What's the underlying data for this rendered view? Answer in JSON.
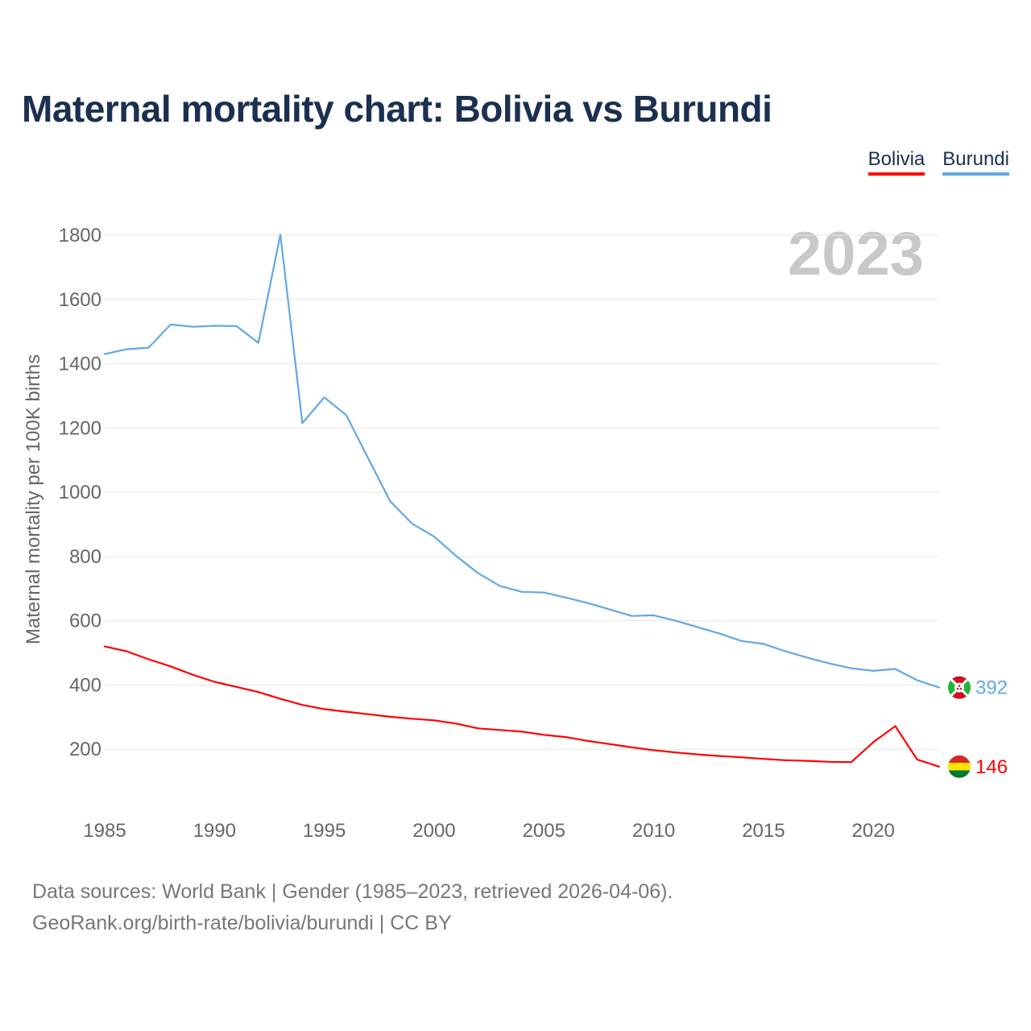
{
  "title": "Maternal mortality chart: Bolivia vs Burundi",
  "year_label": "2023",
  "legend": [
    {
      "label": "Bolivia",
      "color": "#ff0000"
    },
    {
      "label": "Burundi",
      "color": "#62a8e5"
    }
  ],
  "source": {
    "line1": "Data sources: World Bank | Gender (1985–2023, retrieved 2026-04-06).",
    "line2": "GeoRank.org/birth-rate/bolivia/burundi | CC BY"
  },
  "chart_data": {
    "type": "line",
    "title": "Maternal mortality chart: Bolivia vs Burundi",
    "xlabel": "",
    "ylabel": "Maternal mortality per 100K births",
    "xlim": [
      1985,
      2023
    ],
    "ylim": [
      0,
      1800
    ],
    "yticks": [
      200,
      400,
      600,
      800,
      1000,
      1200,
      1400,
      1600,
      1800
    ],
    "xticks": [
      1985,
      1990,
      1995,
      2000,
      2005,
      2010,
      2015,
      2020
    ],
    "grid": true,
    "legend_position": "top-right",
    "x": [
      1985,
      1986,
      1987,
      1988,
      1989,
      1990,
      1991,
      1992,
      1993,
      1994,
      1995,
      1996,
      1997,
      1998,
      1999,
      2000,
      2001,
      2002,
      2003,
      2004,
      2005,
      2006,
      2007,
      2008,
      2009,
      2010,
      2011,
      2012,
      2013,
      2014,
      2015,
      2016,
      2017,
      2018,
      2019,
      2020,
      2021,
      2022,
      2023
    ],
    "series": [
      {
        "name": "Burundi",
        "color": "#62a8e5",
        "end_label": "392",
        "values": [
          1430,
          1445,
          1450,
          1522,
          1515,
          1518,
          1517,
          1465,
          1802,
          1215,
          1295,
          1240,
          1105,
          972,
          902,
          862,
          802,
          748,
          708,
          690,
          688,
          672,
          655,
          635,
          615,
          617,
          600,
          580,
          560,
          537,
          528,
          505,
          485,
          467,
          452,
          444,
          450,
          415,
          392
        ]
      },
      {
        "name": "Bolivia",
        "color": "#ff0000",
        "end_label": "146",
        "values": [
          520,
          505,
          480,
          458,
          432,
          410,
          394,
          378,
          357,
          338,
          325,
          317,
          309,
          301,
          295,
          290,
          280,
          265,
          260,
          255,
          245,
          238,
          226,
          216,
          206,
          197,
          190,
          184,
          179,
          175,
          170,
          166,
          164,
          161,
          160,
          222,
          272,
          168,
          146
        ]
      }
    ]
  }
}
